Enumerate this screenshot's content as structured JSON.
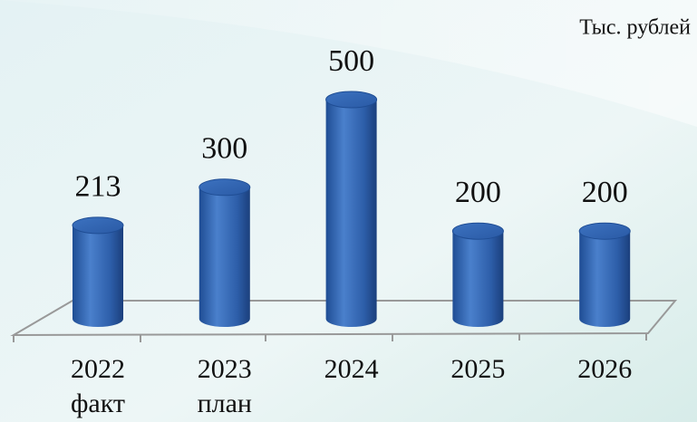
{
  "chart_data": {
    "type": "bar",
    "unit_label": "Тыс. рублей",
    "categories": [
      [
        "2022",
        "факт"
      ],
      [
        "2023",
        "план"
      ],
      [
        "2024"
      ],
      [
        "2025"
      ],
      [
        "2026"
      ]
    ],
    "values": [
      213,
      300,
      500,
      200,
      200
    ],
    "color": "#3a6db8"
  }
}
